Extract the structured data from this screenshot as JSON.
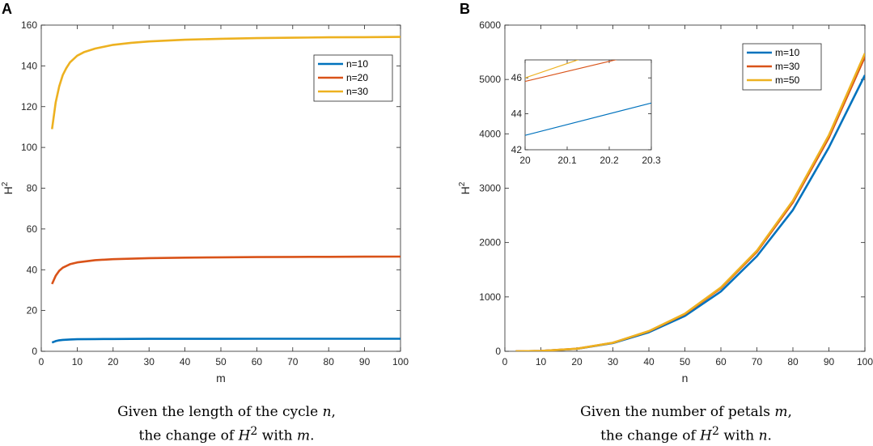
{
  "chart_data": [
    {
      "type": "line",
      "panel": "A",
      "xlabel": "m",
      "ylabel": "H²",
      "xlim": [
        0,
        100
      ],
      "ylim": [
        0,
        160
      ],
      "xticks": [
        0,
        10,
        20,
        30,
        40,
        50,
        60,
        70,
        80,
        90,
        100
      ],
      "yticks": [
        0,
        20,
        40,
        60,
        80,
        100,
        120,
        140,
        160
      ],
      "legend": "top-right",
      "series": [
        {
          "name": "n=10",
          "color": "#0072BD",
          "x": [
            3,
            4,
            5,
            6,
            8,
            10,
            15,
            20,
            30,
            40,
            50,
            60,
            70,
            80,
            90,
            100
          ],
          "y": [
            4.3,
            5.0,
            5.4,
            5.6,
            5.8,
            5.9,
            6.0,
            6.05,
            6.1,
            6.12,
            6.13,
            6.14,
            6.15,
            6.15,
            6.16,
            6.16
          ]
        },
        {
          "name": "n=20",
          "color": "#D95319",
          "x": [
            3,
            4,
            5,
            6,
            8,
            10,
            15,
            20,
            30,
            40,
            50,
            60,
            70,
            80,
            90,
            100
          ],
          "y": [
            33,
            37,
            39.5,
            41,
            42.7,
            43.6,
            44.7,
            45.2,
            45.7,
            45.95,
            46.1,
            46.2,
            46.3,
            46.35,
            46.4,
            46.45
          ]
        },
        {
          "name": "n=30",
          "color": "#EDB120",
          "x": [
            3,
            4,
            5,
            6,
            7,
            8,
            10,
            12,
            15,
            20,
            25,
            30,
            40,
            50,
            60,
            70,
            80,
            90,
            100
          ],
          "y": [
            109,
            122,
            130,
            135.5,
            139,
            141.7,
            145,
            146.8,
            148.5,
            150.3,
            151.3,
            152,
            152.8,
            153.3,
            153.6,
            153.8,
            154,
            154.1,
            154.2
          ]
        }
      ],
      "caption_line1_pre": "Given the length of the cycle ",
      "caption_line1_var": "n",
      "caption_line1_post": ",",
      "caption_line2_pre": "the change of ",
      "caption_line2_var": "H",
      "caption_line2_sup": "2",
      "caption_line2_mid": " with ",
      "caption_line2_var2": "m",
      "caption_line2_post": "."
    },
    {
      "type": "line",
      "panel": "B",
      "xlabel": "n",
      "ylabel": "H²",
      "xlim": [
        0,
        100
      ],
      "ylim": [
        0,
        6000
      ],
      "xticks": [
        0,
        10,
        20,
        30,
        40,
        50,
        60,
        70,
        80,
        90,
        100
      ],
      "yticks": [
        0,
        1000,
        2000,
        3000,
        4000,
        5000,
        6000
      ],
      "legend": "top-right",
      "series": [
        {
          "name": "m=10",
          "color": "#0072BD",
          "x": [
            3,
            10,
            20,
            30,
            40,
            50,
            60,
            70,
            80,
            90,
            100
          ],
          "y": [
            0,
            6,
            45,
            150,
            350,
            650,
            1100,
            1750,
            2600,
            3750,
            5080
          ]
        },
        {
          "name": "m=30",
          "color": "#D95319",
          "x": [
            3,
            10,
            20,
            30,
            40,
            50,
            60,
            70,
            80,
            90,
            100
          ],
          "y": [
            0,
            6,
            47,
            157,
            368,
            685,
            1160,
            1830,
            2740,
            3930,
            5420
          ]
        },
        {
          "name": "m=50",
          "color": "#EDB120",
          "x": [
            3,
            10,
            20,
            30,
            40,
            50,
            60,
            70,
            80,
            90,
            100
          ],
          "y": [
            0,
            6,
            47,
            158,
            372,
            693,
            1175,
            1850,
            2770,
            3975,
            5480
          ]
        }
      ],
      "inset": {
        "xlim": [
          20,
          20.3
        ],
        "ylim": [
          42,
          47
        ],
        "xticks": [
          20,
          20.1,
          20.2,
          20.3
        ],
        "xtick_labels": [
          "20",
          "20.1",
          "20.2",
          "20.3"
        ],
        "yticks": [
          42,
          44,
          46
        ],
        "series": [
          {
            "name": "m=10",
            "color": "#0072BD",
            "x": [
              20,
              20.3
            ],
            "y": [
              42.8,
              44.6
            ]
          },
          {
            "name": "m=30",
            "color": "#D95319",
            "x": [
              20,
              20.25
            ],
            "y": [
              45.8,
              47.2
            ]
          },
          {
            "name": "m=50",
            "color": "#EDB120",
            "x": [
              20,
              20.15
            ],
            "y": [
              46.0,
              47.2
            ]
          }
        ]
      },
      "caption_line1_pre": "Given the number of petals ",
      "caption_line1_var": "m",
      "caption_line1_post": ",",
      "caption_line2_pre": "the change of ",
      "caption_line2_var": "H",
      "caption_line2_sup": "2",
      "caption_line2_mid": " with ",
      "caption_line2_var2": "n",
      "caption_line2_post": "."
    }
  ]
}
